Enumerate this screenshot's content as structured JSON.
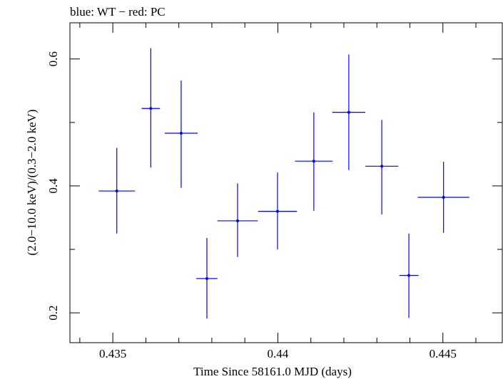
{
  "chart_data": {
    "type": "scatter",
    "title": "blue: WT − red: PC",
    "xlabel": "Time Since 58161.0 MJD (days)",
    "ylabel": "(2.0−10.0 keV)/(0.3−2.0 keV)",
    "xlim": [
      0.4337,
      0.4468
    ],
    "ylim": [
      0.153,
      0.657
    ],
    "xticks": [
      0.435,
      0.44,
      0.445
    ],
    "xtick_labels": [
      "0.435",
      "0.44",
      "0.445"
    ],
    "yticks": [
      0.2,
      0.4,
      0.6
    ],
    "ytick_labels": [
      "0.2",
      "0.4",
      "0.6"
    ],
    "grid": false,
    "color": "#0000ff",
    "series": [
      {
        "points": [
          {
            "x": 0.43512,
            "y": 0.392,
            "xerr": 0.00055,
            "ylo": 0.325,
            "yhi": 0.46
          },
          {
            "x": 0.43615,
            "y": 0.522,
            "xerr": 0.00028,
            "ylo": 0.429,
            "yhi": 0.617
          },
          {
            "x": 0.43707,
            "y": 0.483,
            "xerr": 0.0005,
            "ylo": 0.397,
            "yhi": 0.566
          },
          {
            "x": 0.43785,
            "y": 0.254,
            "xerr": 0.00032,
            "ylo": 0.191,
            "yhi": 0.318
          },
          {
            "x": 0.43878,
            "y": 0.345,
            "xerr": 0.00061,
            "ylo": 0.288,
            "yhi": 0.404
          },
          {
            "x": 0.43999,
            "y": 0.36,
            "xerr": 0.00059,
            "ylo": 0.3,
            "yhi": 0.421
          },
          {
            "x": 0.44109,
            "y": 0.439,
            "xerr": 0.00057,
            "ylo": 0.361,
            "yhi": 0.516
          },
          {
            "x": 0.44215,
            "y": 0.516,
            "xerr": 0.0005,
            "ylo": 0.425,
            "yhi": 0.607
          },
          {
            "x": 0.44315,
            "y": 0.431,
            "xerr": 0.0005,
            "ylo": 0.355,
            "yhi": 0.504
          },
          {
            "x": 0.44397,
            "y": 0.259,
            "xerr": 0.00029,
            "ylo": 0.192,
            "yhi": 0.325
          },
          {
            "x": 0.44502,
            "y": 0.382,
            "xerr": 0.00078,
            "ylo": 0.326,
            "yhi": 0.438
          }
        ]
      }
    ]
  }
}
